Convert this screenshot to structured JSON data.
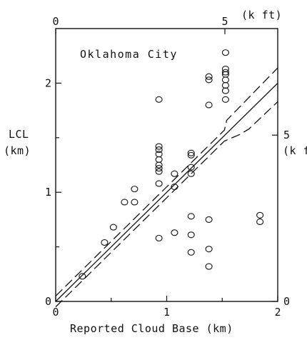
{
  "chart_data": {
    "type": "scatter",
    "title": "Oklahoma City",
    "xlabel": "Reported Cloud Base (km)",
    "ylabel_line1": "LCL",
    "ylabel_line2": "(km)",
    "xlim": [
      0,
      2
    ],
    "ylim": [
      0,
      2.5
    ],
    "x_ticks": [
      "0",
      "1",
      "2"
    ],
    "y_ticks": [
      "0",
      "1",
      "2"
    ],
    "top_axis": {
      "ticks": [
        "0",
        "5"
      ],
      "unit_label": "(k ft)"
    },
    "right_axis": {
      "ticks": [
        "0",
        "5"
      ],
      "unit_label": "(k ft)"
    },
    "grid": false,
    "legend": "none",
    "series": [
      {
        "points": [
          [
            0.24,
            0.23
          ],
          [
            0.44,
            0.54
          ],
          [
            0.52,
            0.68
          ],
          [
            0.62,
            0.91
          ],
          [
            0.71,
            0.91
          ],
          [
            0.71,
            1.03
          ],
          [
            0.93,
            0.58
          ],
          [
            0.93,
            1.08
          ],
          [
            0.93,
            1.19
          ],
          [
            0.93,
            1.22
          ],
          [
            0.93,
            1.25
          ],
          [
            0.93,
            1.3
          ],
          [
            0.93,
            1.35
          ],
          [
            0.93,
            1.39
          ],
          [
            0.93,
            1.42
          ],
          [
            0.93,
            1.85
          ],
          [
            1.07,
            0.63
          ],
          [
            1.07,
            1.05
          ],
          [
            1.07,
            1.17
          ],
          [
            1.22,
            0.45
          ],
          [
            1.22,
            0.61
          ],
          [
            1.22,
            0.78
          ],
          [
            1.22,
            1.17
          ],
          [
            1.22,
            1.23
          ],
          [
            1.22,
            1.34
          ],
          [
            1.22,
            1.36
          ],
          [
            1.38,
            0.32
          ],
          [
            1.38,
            0.48
          ],
          [
            1.38,
            0.75
          ],
          [
            1.38,
            1.8
          ],
          [
            1.38,
            2.03
          ],
          [
            1.38,
            2.06
          ],
          [
            1.53,
            1.85
          ],
          [
            1.53,
            1.93
          ],
          [
            1.53,
            1.98
          ],
          [
            1.53,
            2.03
          ],
          [
            1.53,
            2.08
          ],
          [
            1.53,
            2.1
          ],
          [
            1.53,
            2.13
          ],
          [
            1.53,
            2.28
          ],
          [
            1.84,
            0.73
          ],
          [
            1.84,
            0.79
          ]
        ]
      }
    ],
    "lines": [
      {
        "style": "solid",
        "points": [
          [
            0,
            0
          ],
          [
            2,
            2
          ]
        ]
      },
      {
        "style": "dashed",
        "points": [
          [
            0,
            0.05
          ],
          [
            1.52,
            1.57
          ],
          [
            1.54,
            1.66
          ],
          [
            2,
            2.14
          ]
        ]
      },
      {
        "style": "dashed",
        "points": [
          [
            0,
            -0.05
          ],
          [
            1.52,
            1.47
          ],
          [
            1.66,
            1.53
          ],
          [
            1.74,
            1.58
          ],
          [
            2,
            1.83
          ]
        ]
      }
    ]
  }
}
